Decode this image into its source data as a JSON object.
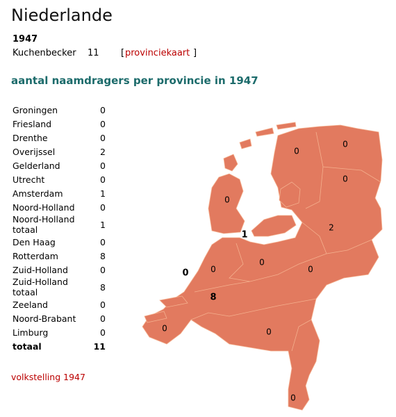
{
  "header": {
    "title": "Niederlande"
  },
  "summary": {
    "year": "1947",
    "name": "Kuchenbecker",
    "count": 11,
    "bracket_open": "[",
    "link": "provinciekaart",
    "bracket_close": "]"
  },
  "section_title": "aantal naamdragers per provincie in 1947",
  "table": {
    "rows": [
      [
        "Groningen",
        0
      ],
      [
        "Friesland",
        0
      ],
      [
        "Drenthe",
        0
      ],
      [
        "Overijssel",
        2
      ],
      [
        "Gelderland",
        0
      ],
      [
        "Utrecht",
        0
      ],
      [
        "Amsterdam",
        1
      ],
      [
        "Noord-Holland",
        0
      ],
      [
        "Noord-Holland totaal",
        1
      ],
      [
        "Den Haag",
        0
      ],
      [
        "Rotterdam",
        8
      ],
      [
        "Zuid-Holland",
        0
      ],
      [
        "Zuid-Holland totaal",
        8
      ],
      [
        "Zeeland",
        0
      ],
      [
        "Noord-Brabant",
        0
      ],
      [
        "Limburg",
        0
      ],
      [
        "totaal",
        11
      ]
    ]
  },
  "footer": {
    "source": "volkstelling 1947"
  }
}
